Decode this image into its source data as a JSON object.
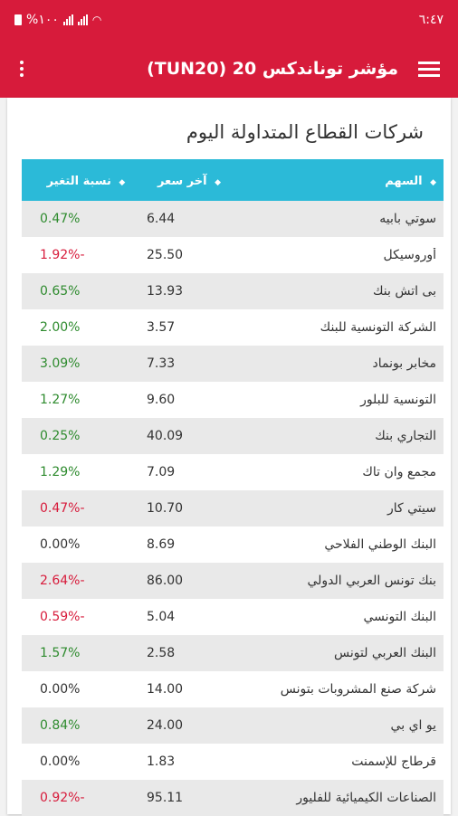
{
  "status": {
    "time": "٦:٤٧",
    "battery": "%١٠٠"
  },
  "toolbar": {
    "title": "مؤشر توناندكس 20 (TUN20)"
  },
  "section": {
    "title": "شركات القطاع المتداولة اليوم"
  },
  "table": {
    "headers": {
      "name": "السهم",
      "price": "آخر سعر",
      "change": "نسبة التغير"
    },
    "rows": [
      {
        "name": "سوتي بابيه",
        "price": "6.44",
        "change": "0.47%",
        "dir": "pos"
      },
      {
        "name": "أوروسيكل",
        "price": "25.50",
        "change": "-1.92%",
        "dir": "neg"
      },
      {
        "name": "بى اتش بنك",
        "price": "13.93",
        "change": "0.65%",
        "dir": "pos"
      },
      {
        "name": "الشركة التونسية للبنك",
        "price": "3.57",
        "change": "2.00%",
        "dir": "pos"
      },
      {
        "name": "مخابر بونماد",
        "price": "7.33",
        "change": "3.09%",
        "dir": "pos"
      },
      {
        "name": "التونسية للبلور",
        "price": "9.60",
        "change": "1.27%",
        "dir": "pos"
      },
      {
        "name": "التجاري بنك",
        "price": "40.09",
        "change": "0.25%",
        "dir": "pos"
      },
      {
        "name": "مجمع وان تاك",
        "price": "7.09",
        "change": "1.29%",
        "dir": "pos"
      },
      {
        "name": "سيتي كار",
        "price": "10.70",
        "change": "-0.47%",
        "dir": "neg"
      },
      {
        "name": "البنك الوطني الفلاحي",
        "price": "8.69",
        "change": "0.00%",
        "dir": "zero"
      },
      {
        "name": "بنك تونس العربي الدولي",
        "price": "86.00",
        "change": "-2.64%",
        "dir": "neg"
      },
      {
        "name": "البنك التونسي",
        "price": "5.04",
        "change": "-0.59%",
        "dir": "neg"
      },
      {
        "name": "البنك العربي لتونس",
        "price": "2.58",
        "change": "1.57%",
        "dir": "pos"
      },
      {
        "name": "شركة صنع المشروبات بتونس",
        "price": "14.00",
        "change": "0.00%",
        "dir": "zero"
      },
      {
        "name": "يو اي بي",
        "price": "24.00",
        "change": "0.84%",
        "dir": "pos"
      },
      {
        "name": "قرطاج للإسمنت",
        "price": "1.83",
        "change": "0.00%",
        "dir": "zero"
      },
      {
        "name": "الصناعات الكيميائية للفليور",
        "price": "95.11",
        "change": "-0.92%",
        "dir": "neg"
      }
    ]
  },
  "colors": {
    "primary": "#d71b3b",
    "header": "#2bbad8",
    "positive": "#2e8b2e",
    "negative": "#d71b3b"
  }
}
